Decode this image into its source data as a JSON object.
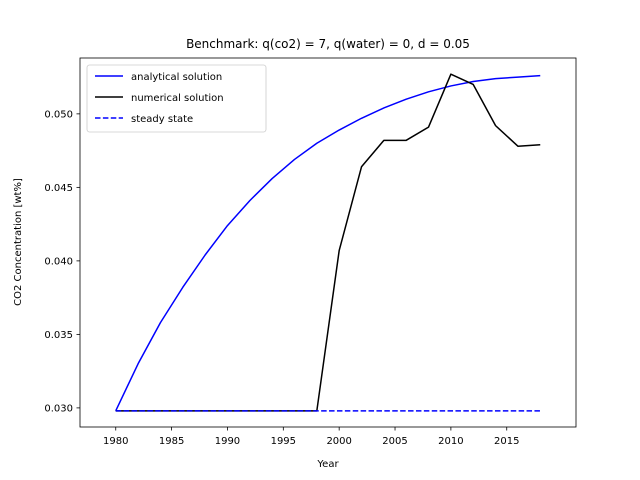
{
  "chart_data": {
    "type": "line",
    "title": "Benchmark: q(co2) = 7, q(water) = 0, d = 0.05",
    "xlabel": "Year",
    "ylabel": "CO2 Concentration [wt%]",
    "xlim": [
      1976.8,
      2021.2
    ],
    "ylim": [
      0.0287,
      0.0538
    ],
    "xticks": [
      1980,
      1985,
      1990,
      1995,
      2000,
      2005,
      2010,
      2015
    ],
    "yticks": [
      0.03,
      0.035,
      0.04,
      0.045,
      0.05
    ],
    "ytick_labels": [
      "0.030",
      "0.035",
      "0.040",
      "0.045",
      "0.050"
    ],
    "grid": false,
    "legend_position": "upper-left",
    "series": [
      {
        "name": "analytical solution",
        "color": "#0000ff",
        "style": "solid",
        "x": [
          1980,
          1982,
          1984,
          1986,
          1988,
          1990,
          1992,
          1994,
          1996,
          1998,
          2000,
          2002,
          2004,
          2006,
          2008,
          2010,
          2012,
          2014,
          2016,
          2018
        ],
        "y": [
          0.0298,
          0.033,
          0.0358,
          0.0382,
          0.0404,
          0.0424,
          0.0441,
          0.0456,
          0.0469,
          0.048,
          0.0489,
          0.0497,
          0.0504,
          0.051,
          0.0515,
          0.0519,
          0.0522,
          0.0524,
          0.0525,
          0.0526
        ]
      },
      {
        "name": "numerical solution",
        "color": "#000000",
        "style": "solid",
        "x": [
          1980,
          1982,
          1984,
          1986,
          1988,
          1990,
          1992,
          1994,
          1996,
          1998,
          2000,
          2002,
          2004,
          2006,
          2008,
          2010,
          2012,
          2014,
          2016,
          2018
        ],
        "y": [
          0.0298,
          0.0298,
          0.0298,
          0.0298,
          0.0298,
          0.0298,
          0.0298,
          0.0298,
          0.0298,
          0.0298,
          0.0407,
          0.0464,
          0.0482,
          0.0482,
          0.0491,
          0.0527,
          0.052,
          0.0492,
          0.0478,
          0.0479
        ]
      },
      {
        "name": "steady state",
        "color": "#0000ff",
        "style": "dashed",
        "x": [
          1980,
          2018
        ],
        "y": [
          0.0298,
          0.0298
        ]
      }
    ]
  }
}
